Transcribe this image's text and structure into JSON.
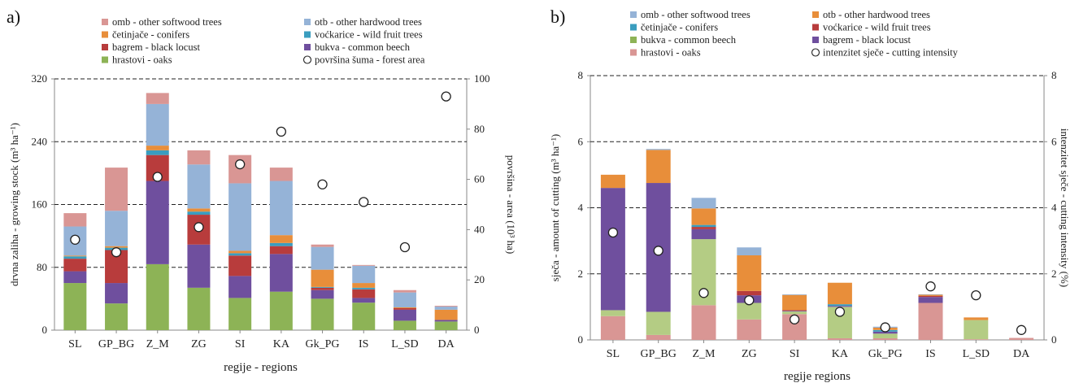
{
  "chart_data": [
    {
      "id": "a",
      "panel_label": "a)",
      "type": "bar",
      "stacked": true,
      "categories": [
        "SL",
        "GP_BG",
        "Z_M",
        "ZG",
        "SI",
        "KA",
        "Gk_PG",
        "IS",
        "L_SD",
        "DA"
      ],
      "xlabel": "regije - regions",
      "ylabel": "drvna zaliha - growing stock (m³ ha⁻¹)",
      "y2label": "površina - area (10³ ha)",
      "ylim": [
        0,
        320
      ],
      "y2lim": [
        0,
        100
      ],
      "yticks": [
        "0",
        "80",
        "160",
        "240",
        "320"
      ],
      "y2ticks": [
        "0",
        "20",
        "40",
        "60",
        "80",
        "100"
      ],
      "grid": "dashed horizontal",
      "legend_position": "top",
      "series": [
        {
          "name": "hrastovi - oaks",
          "color": "#8db356",
          "values": [
            60,
            34,
            84,
            54,
            41,
            49,
            40,
            35,
            12,
            11
          ]
        },
        {
          "name": "bukva - common beech",
          "color": "#6f4f9e",
          "values": [
            15,
            26,
            106,
            55,
            28,
            48,
            11,
            6,
            14,
            2
          ]
        },
        {
          "name": "bagrem - black locust",
          "color": "#b83c3c",
          "values": [
            16,
            42,
            33,
            38,
            26,
            10,
            3,
            11,
            2,
            0
          ]
        },
        {
          "name": "voćkarice - wild fruit trees",
          "color": "#3a9dbf",
          "values": [
            3,
            3,
            6,
            4,
            3,
            4,
            1,
            2,
            0,
            0
          ]
        },
        {
          "name": "četinjače - conifers",
          "color": "#e88e3a",
          "values": [
            1,
            2,
            6,
            4,
            3,
            10,
            22,
            6,
            1,
            13
          ]
        },
        {
          "name": "otb - other hardwood trees",
          "color": "#95b3d7",
          "values": [
            37,
            45,
            53,
            56,
            86,
            69,
            29,
            22,
            19,
            4
          ]
        },
        {
          "name": "omb - other softwood trees",
          "color": "#d99694",
          "values": [
            17,
            55,
            14,
            18,
            36,
            17,
            3,
            1,
            3,
            1
          ]
        }
      ],
      "points": {
        "name": "površina šuma - forest area",
        "axis": "right",
        "values": [
          36,
          31,
          61,
          41,
          66,
          79,
          58,
          51,
          33,
          93
        ]
      },
      "legend_order": [
        "omb - other softwood trees",
        "otb - other hardwood trees",
        "četinjače - conifers",
        "voćkarice - wild fruit trees",
        "bagrem - black locust",
        "bukva - common beech",
        "hrastovi - oaks",
        "površina šuma - forest area"
      ]
    },
    {
      "id": "b",
      "panel_label": "b)",
      "type": "bar",
      "stacked": true,
      "categories": [
        "SL",
        "GP_BG",
        "Z_M",
        "ZG",
        "SI",
        "KA",
        "Gk_PG",
        "IS",
        "L_SD",
        "DA"
      ],
      "xlabel": "regije regions",
      "ylabel": "sječa - amount of cutting (m³ ha⁻¹)",
      "y2label": "intenzitet sječe - cutting intensity (%)",
      "ylim": [
        0,
        8
      ],
      "y2lim": [
        0,
        8
      ],
      "yticks": [
        "0",
        "2",
        "4",
        "6",
        "8"
      ],
      "y2ticks": [
        "0",
        "2",
        "4",
        "6",
        "8"
      ],
      "grid": "dashed horizontal",
      "legend_position": "top",
      "series": [
        {
          "name": "hrastovi - oaks",
          "color": "#d99694",
          "values": [
            0.72,
            0.15,
            1.05,
            0.62,
            0.78,
            0.05,
            0.05,
            1.12,
            0.02,
            0.06
          ]
        },
        {
          "name": "bagrem - black locust",
          "color": "#b4cc84",
          "values": [
            0.18,
            0.7,
            2.0,
            0.5,
            0.08,
            0.95,
            0.14,
            0.0,
            0.58,
            0.0
          ]
        },
        {
          "name": "bukva - common beech",
          "color": "#6f4f9e",
          "values": [
            3.7,
            3.9,
            0.3,
            0.23,
            0.02,
            0.03,
            0.06,
            0.18,
            0.0,
            0.0
          ]
        },
        {
          "name": "voćkarice - wild fruit trees",
          "color": "#b83c3c",
          "values": [
            0.0,
            0.0,
            0.07,
            0.13,
            0.02,
            0.0,
            0.0,
            0.03,
            0.0,
            0.0
          ]
        },
        {
          "name": "četinjače - conifers",
          "color": "#3a9dbf",
          "values": [
            0.0,
            0.0,
            0.06,
            0.0,
            0.0,
            0.05,
            0.05,
            0.0,
            0.0,
            0.0
          ]
        },
        {
          "name": "otb - other hardwood trees",
          "color": "#e88e3a",
          "values": [
            0.4,
            1.0,
            0.5,
            1.08,
            0.46,
            0.65,
            0.07,
            0.04,
            0.08,
            0.0
          ]
        },
        {
          "name": "omb - other softwood trees",
          "color": "#95b3d7",
          "values": [
            0.0,
            0.03,
            0.32,
            0.24,
            0.02,
            0.0,
            0.03,
            0.01,
            0.0,
            0.0
          ]
        }
      ],
      "points": {
        "name": "intenzitet sječe - cutting intensity",
        "axis": "right",
        "values": [
          3.25,
          2.7,
          1.42,
          1.2,
          0.62,
          0.85,
          0.38,
          1.62,
          1.35,
          0.3
        ]
      },
      "legend_order": [
        "omb - other softwood trees",
        "otb - other hardwood trees",
        "četinjače - conifers",
        "voćkarice - wild fruit trees",
        "bukva - common beech",
        "bagrem - black locust",
        "hrastovi - oaks",
        "intenzitet sječe - cutting intensity"
      ],
      "legend_color_overrides": {
        "bagrem - black locust": "#6f4f9e",
        "bukva - common beech": "#8db356"
      }
    }
  ]
}
